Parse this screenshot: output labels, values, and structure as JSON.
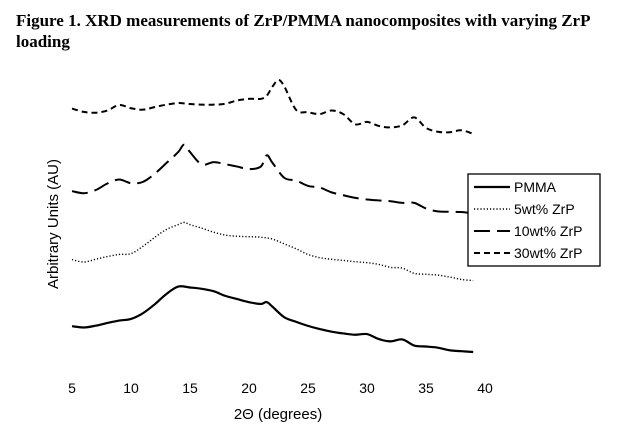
{
  "chart_data": {
    "type": "line",
    "title": "Figure 1. XRD measurements of ZrP/PMMA nanocomposites with varying ZrP loading",
    "xlabel": "2Θ (degrees)",
    "ylabel": "Arbitrary Units (AU)",
    "xlim": [
      5,
      40
    ],
    "xticks": [
      5,
      10,
      15,
      20,
      25,
      30,
      35,
      40
    ],
    "y_ticks_shown": false,
    "grid": false,
    "legend_position": "right",
    "series": [
      {
        "name": "PMMA",
        "style": "solid",
        "points": [
          [
            5,
            1.6
          ],
          [
            6,
            1.52
          ],
          [
            7,
            1.63
          ],
          [
            8,
            1.8
          ],
          [
            9,
            1.95
          ],
          [
            10,
            2.05
          ],
          [
            11,
            2.4
          ],
          [
            12,
            2.95
          ],
          [
            13,
            3.6
          ],
          [
            14,
            4.06
          ],
          [
            15,
            4.0
          ],
          [
            16,
            3.92
          ],
          [
            17,
            3.77
          ],
          [
            18,
            3.48
          ],
          [
            19,
            3.28
          ],
          [
            20,
            3.09
          ],
          [
            21,
            2.98
          ],
          [
            21.5,
            3.1
          ],
          [
            22,
            2.8
          ],
          [
            23,
            2.15
          ],
          [
            24,
            1.87
          ],
          [
            25,
            1.62
          ],
          [
            26,
            1.42
          ],
          [
            27,
            1.26
          ],
          [
            28,
            1.15
          ],
          [
            29,
            1.07
          ],
          [
            30,
            1.11
          ],
          [
            31,
            0.8
          ],
          [
            32,
            0.66
          ],
          [
            33,
            0.78
          ],
          [
            34,
            0.4
          ],
          [
            35,
            0.34
          ],
          [
            36,
            0.27
          ],
          [
            37,
            0.11
          ],
          [
            38,
            0.05
          ],
          [
            39,
            0.0
          ]
        ]
      },
      {
        "name": "5wt% ZrP",
        "style": "dotted",
        "points": [
          [
            5,
            5.73
          ],
          [
            6,
            5.58
          ],
          [
            7,
            5.75
          ],
          [
            8,
            5.92
          ],
          [
            9,
            6.05
          ],
          [
            10,
            6.1
          ],
          [
            11,
            6.55
          ],
          [
            12,
            7.1
          ],
          [
            13,
            7.6
          ],
          [
            14,
            7.9
          ],
          [
            14.5,
            8.04
          ],
          [
            15,
            7.9
          ],
          [
            16,
            7.68
          ],
          [
            17,
            7.43
          ],
          [
            18,
            7.25
          ],
          [
            19,
            7.18
          ],
          [
            20,
            7.15
          ],
          [
            21,
            7.12
          ],
          [
            22,
            7.0
          ],
          [
            23,
            6.7
          ],
          [
            24,
            6.4
          ],
          [
            25,
            6.05
          ],
          [
            26,
            5.85
          ],
          [
            27,
            5.75
          ],
          [
            28,
            5.68
          ],
          [
            29,
            5.6
          ],
          [
            30,
            5.54
          ],
          [
            31,
            5.43
          ],
          [
            32,
            5.25
          ],
          [
            33,
            5.2
          ],
          [
            34,
            4.88
          ],
          [
            35,
            4.82
          ],
          [
            36,
            4.77
          ],
          [
            37,
            4.65
          ],
          [
            38,
            4.5
          ],
          [
            39,
            4.43
          ]
        ]
      },
      {
        "name": "10wt% ZrP",
        "style": "long-dash",
        "points": [
          [
            5,
            9.98
          ],
          [
            6,
            9.85
          ],
          [
            7,
            10.04
          ],
          [
            8,
            10.45
          ],
          [
            9,
            10.7
          ],
          [
            10,
            10.47
          ],
          [
            11,
            10.55
          ],
          [
            12,
            11.05
          ],
          [
            13,
            11.72
          ],
          [
            14,
            12.4
          ],
          [
            14.5,
            12.86
          ],
          [
            15,
            12.4
          ],
          [
            16,
            11.63
          ],
          [
            17,
            11.78
          ],
          [
            18,
            11.65
          ],
          [
            19,
            11.5
          ],
          [
            20,
            11.34
          ],
          [
            21,
            11.5
          ],
          [
            21.5,
            12.2
          ],
          [
            22,
            11.72
          ],
          [
            23,
            10.8
          ],
          [
            24,
            10.63
          ],
          [
            25,
            10.3
          ],
          [
            26,
            10.2
          ],
          [
            27,
            9.9
          ],
          [
            28,
            9.72
          ],
          [
            29,
            9.56
          ],
          [
            30,
            9.46
          ],
          [
            31,
            9.4
          ],
          [
            32,
            9.35
          ],
          [
            33,
            9.25
          ],
          [
            34,
            9.25
          ],
          [
            35,
            8.9
          ],
          [
            36,
            8.72
          ],
          [
            37,
            8.7
          ],
          [
            38,
            8.68
          ],
          [
            39,
            8.59
          ]
        ]
      },
      {
        "name": "30wt% ZrP",
        "style": "short-dash",
        "points": [
          [
            5,
            15.1
          ],
          [
            6,
            14.89
          ],
          [
            7,
            14.84
          ],
          [
            8,
            14.98
          ],
          [
            9,
            15.32
          ],
          [
            10,
            15.12
          ],
          [
            11,
            15.03
          ],
          [
            12,
            15.19
          ],
          [
            13,
            15.34
          ],
          [
            14,
            15.44
          ],
          [
            15,
            15.38
          ],
          [
            16,
            15.34
          ],
          [
            17,
            15.34
          ],
          [
            18,
            15.4
          ],
          [
            19,
            15.6
          ],
          [
            20,
            15.7
          ],
          [
            21,
            15.7
          ],
          [
            21.5,
            15.89
          ],
          [
            22,
            16.47
          ],
          [
            22.5,
            16.87
          ],
          [
            23,
            16.46
          ],
          [
            24,
            15.01
          ],
          [
            25,
            14.87
          ],
          [
            26,
            14.76
          ],
          [
            27,
            14.98
          ],
          [
            28,
            14.75
          ],
          [
            29,
            14.12
          ],
          [
            30,
            14.27
          ],
          [
            31,
            14.02
          ],
          [
            32,
            13.93
          ],
          [
            33,
            14.06
          ],
          [
            34,
            14.55
          ],
          [
            35,
            13.9
          ],
          [
            36,
            13.66
          ],
          [
            37,
            13.63
          ],
          [
            38,
            13.75
          ],
          [
            39,
            13.53
          ]
        ]
      }
    ]
  }
}
